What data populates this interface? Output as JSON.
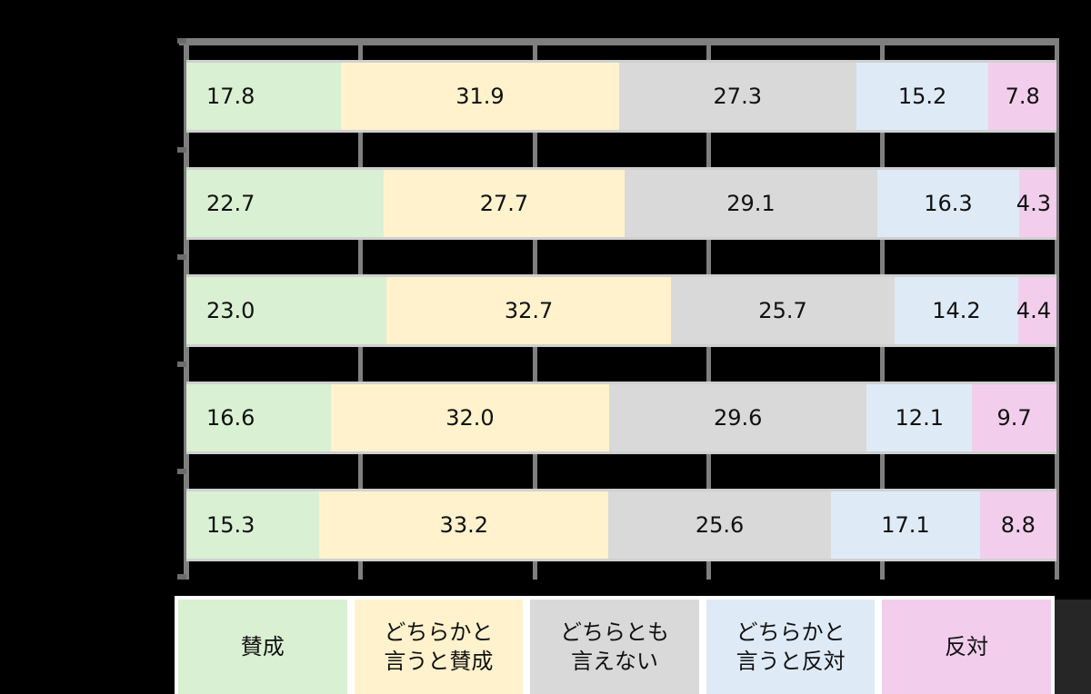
{
  "chart_data": {
    "type": "bar",
    "orientation": "horizontal",
    "stacked": true,
    "percent_stacked": true,
    "title": "",
    "xlabel": "",
    "ylabel": "",
    "xlim": [
      0,
      100
    ],
    "x_gridlines": [
      0,
      20,
      40,
      60,
      80,
      100
    ],
    "grid": true,
    "legend_position": "bottom",
    "categories": [
      "",
      "",
      "",
      "",
      ""
    ],
    "series": [
      {
        "name": "賛成",
        "color": "#d9f0d3",
        "values": [
          17.8,
          22.7,
          23.0,
          16.6,
          15.3
        ]
      },
      {
        "name": "どちらかと言うと賛成",
        "color": "#fff2cc",
        "values": [
          31.9,
          27.7,
          32.7,
          32.0,
          33.2
        ]
      },
      {
        "name": "どちらとも言えない",
        "color": "#d9d9d9",
        "values": [
          27.3,
          29.1,
          25.7,
          29.6,
          25.6
        ]
      },
      {
        "name": "どちらかと言うと反対",
        "color": "#deebf7",
        "values": [
          15.2,
          16.3,
          14.2,
          12.1,
          17.1
        ]
      },
      {
        "name": "反対",
        "color": "#f2ceec",
        "values": [
          7.8,
          4.3,
          4.4,
          9.7,
          8.8
        ]
      }
    ]
  },
  "rows": [
    {
      "segments": [
        {
          "label": "17.8",
          "value": 17.8
        },
        {
          "label": "31.9",
          "value": 31.9
        },
        {
          "label": "27.3",
          "value": 27.3
        },
        {
          "label": "15.2",
          "value": 15.2
        },
        {
          "label": "7.8",
          "value": 7.8
        }
      ]
    },
    {
      "segments": [
        {
          "label": "22.7",
          "value": 22.7
        },
        {
          "label": "27.7",
          "value": 27.7
        },
        {
          "label": "29.1",
          "value": 29.1
        },
        {
          "label": "16.3",
          "value": 16.3
        },
        {
          "label": "4.3",
          "value": 4.3
        }
      ]
    },
    {
      "segments": [
        {
          "label": "23.0",
          "value": 23.0
        },
        {
          "label": "32.7",
          "value": 32.7
        },
        {
          "label": "25.7",
          "value": 25.7
        },
        {
          "label": "14.2",
          "value": 14.2
        },
        {
          "label": "4.4",
          "value": 4.4
        }
      ]
    },
    {
      "segments": [
        {
          "label": "16.6",
          "value": 16.6
        },
        {
          "label": "32.0",
          "value": 32.0
        },
        {
          "label": "29.6",
          "value": 29.6
        },
        {
          "label": "12.1",
          "value": 12.1
        },
        {
          "label": "9.7",
          "value": 9.7
        }
      ]
    },
    {
      "segments": [
        {
          "label": "15.3",
          "value": 15.3
        },
        {
          "label": "33.2",
          "value": 33.2
        },
        {
          "label": "25.6",
          "value": 25.6
        },
        {
          "label": "17.1",
          "value": 17.1
        },
        {
          "label": "8.8",
          "value": 8.8
        }
      ]
    }
  ],
  "legend": {
    "items": [
      {
        "label": "賛成",
        "color": "#d9f0d3"
      },
      {
        "label": "どちらかと\n言うと賛成",
        "color": "#fff2cc"
      },
      {
        "label": "どちらとも\n言えない",
        "color": "#d9d9d9"
      },
      {
        "label": "どちらかと\n言うと反対",
        "color": "#deebf7"
      },
      {
        "label": "反対",
        "color": "#f2ceec"
      }
    ]
  }
}
